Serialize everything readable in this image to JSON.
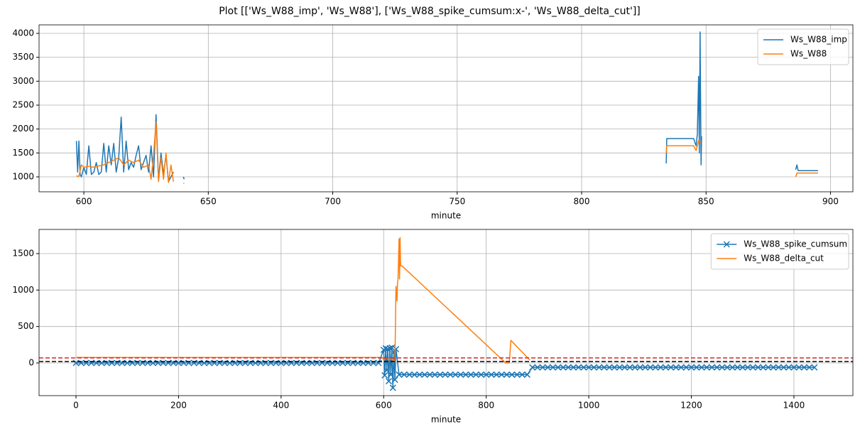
{
  "title": "Plot [['Ws_W88_imp', 'Ws_W88'], ['Ws_W88_spike_cumsum:x-', 'Ws_W88_delta_cut']]",
  "chart_data": [
    {
      "type": "line",
      "xlabel": "minute",
      "grid": true,
      "legend": "upper right",
      "xlim": [
        582,
        909
      ],
      "ylim": [
        688,
        4178
      ],
      "xticks": [
        600,
        650,
        700,
        750,
        800,
        850,
        900
      ],
      "yticks": [
        1000,
        1500,
        2000,
        2500,
        3000,
        3500,
        4000
      ],
      "series": [
        {
          "name": "Ws_W88_imp",
          "color": "#1f77b4",
          "x": [
            597,
            597.5,
            598,
            598.5,
            599,
            600,
            601,
            602,
            603,
            604,
            605,
            606,
            607,
            608,
            609,
            610,
            611,
            612,
            613,
            614,
            615,
            616,
            617,
            618,
            619,
            620,
            621,
            622,
            623,
            624,
            625,
            626,
            627,
            628,
            629,
            630,
            631,
            632,
            633,
            634,
            635,
            636,
            638,
            640,
            640.3,
            700,
            834,
            834.2,
            845,
            846,
            846.5,
            847,
            847.3,
            847.6,
            848,
            848.2,
            870,
            886,
            886.5,
            887,
            895
          ],
          "values": [
            1750,
            1100,
            1750,
            1050,
            1000,
            1200,
            1050,
            1650,
            1050,
            1100,
            1300,
            1050,
            1100,
            1700,
            1100,
            1650,
            1250,
            1700,
            1100,
            1400,
            2250,
            1100,
            1750,
            1150,
            1300,
            1200,
            1450,
            1650,
            1150,
            1300,
            1450,
            1100,
            1650,
            1000,
            2300,
            950,
            1500,
            1050,
            1450,
            900,
            1000,
            1100,
            null,
            1000,
            950,
            null,
            1280,
            1800,
            1800,
            1650,
            1900,
            3100,
            1500,
            4030,
            1250,
            1850,
            null,
            1150,
            1250,
            1130,
            1130
          ]
        },
        {
          "name": "Ws_W88",
          "color": "#ff7f0e",
          "x": [
            597,
            598,
            599,
            600,
            602,
            604,
            606,
            608,
            610,
            612,
            614,
            616,
            618,
            620,
            622,
            624,
            626,
            627,
            628,
            629,
            630,
            631,
            632,
            633,
            634,
            635,
            636,
            638,
            640,
            640.3,
            700,
            834,
            834.2,
            845,
            846,
            847,
            848,
            870,
            886,
            886.5,
            887,
            895
          ],
          "values": [
            1020,
            1010,
            1250,
            1200,
            1220,
            1200,
            1230,
            1250,
            1300,
            1350,
            1400,
            1250,
            1350,
            1300,
            1350,
            1200,
            1250,
            950,
            1450,
            2150,
            900,
            1400,
            950,
            1500,
            880,
            1250,
            900,
            null,
            870,
            860,
            null,
            1500,
            1650,
            1650,
            1550,
            1760,
            1720,
            null,
            1000,
            1080,
            1080,
            1080
          ]
        }
      ]
    },
    {
      "type": "line",
      "xlabel": "minute",
      "grid": true,
      "legend": "upper right",
      "xlim": [
        -72,
        1515
      ],
      "ylim": [
        -448,
        1831
      ],
      "xticks": [
        0,
        200,
        400,
        600,
        800,
        1000,
        1200,
        1400
      ],
      "yticks": [
        0,
        500,
        1000,
        1500
      ],
      "hlines": [
        {
          "value": 70,
          "color": "#d62728"
        },
        {
          "value": 20,
          "color": "#000000"
        }
      ],
      "series": [
        {
          "name": "Ws_W88_spike_cumsum",
          "color": "#1f77b4",
          "marker": "x",
          "x": [
            0,
            10,
            20,
            30,
            40,
            50,
            60,
            70,
            80,
            90,
            100,
            110,
            120,
            130,
            140,
            150,
            160,
            170,
            180,
            190,
            200,
            210,
            220,
            230,
            240,
            250,
            260,
            270,
            280,
            290,
            300,
            310,
            320,
            330,
            340,
            350,
            360,
            370,
            380,
            390,
            400,
            410,
            420,
            430,
            440,
            450,
            460,
            470,
            480,
            490,
            500,
            510,
            520,
            530,
            540,
            550,
            560,
            570,
            580,
            590,
            600,
            602,
            604,
            606,
            608,
            610,
            612,
            614,
            616,
            618,
            620,
            622,
            624,
            630,
            640,
            650,
            660,
            670,
            680,
            690,
            700,
            710,
            720,
            730,
            740,
            750,
            760,
            770,
            780,
            790,
            800,
            810,
            820,
            830,
            840,
            850,
            860,
            870,
            880,
            890,
            900,
            910,
            920,
            930,
            940,
            950,
            960,
            970,
            980,
            990,
            1000,
            1010,
            1020,
            1030,
            1040,
            1050,
            1060,
            1070,
            1080,
            1090,
            1100,
            1110,
            1120,
            1130,
            1140,
            1150,
            1160,
            1170,
            1180,
            1190,
            1200,
            1210,
            1220,
            1230,
            1240,
            1250,
            1260,
            1270,
            1280,
            1290,
            1300,
            1310,
            1320,
            1330,
            1340,
            1350,
            1360,
            1370,
            1380,
            1390,
            1400,
            1410,
            1420,
            1430,
            1440
          ],
          "values": [
            0,
            0,
            0,
            0,
            0,
            0,
            0,
            0,
            0,
            0,
            0,
            0,
            0,
            0,
            0,
            0,
            0,
            0,
            0,
            0,
            0,
            0,
            0,
            0,
            0,
            0,
            0,
            0,
            0,
            0,
            0,
            0,
            0,
            0,
            0,
            0,
            0,
            0,
            0,
            0,
            0,
            0,
            0,
            0,
            0,
            0,
            0,
            0,
            0,
            0,
            0,
            0,
            0,
            0,
            0,
            0,
            0,
            0,
            0,
            0,
            180,
            -170,
            200,
            -100,
            190,
            -250,
            200,
            -160,
            210,
            -340,
            150,
            -230,
            190,
            -160,
            -160,
            -160,
            -160,
            -160,
            -160,
            -160,
            -160,
            -160,
            -160,
            -160,
            -160,
            -160,
            -160,
            -160,
            -160,
            -160,
            -160,
            -160,
            -160,
            -160,
            -160,
            -160,
            -160,
            -160,
            -160,
            -60,
            -60,
            -60,
            -60,
            -60,
            -60,
            -60,
            -60,
            -60,
            -60,
            -60,
            -60,
            -60,
            -60,
            -60,
            -60,
            -60,
            -60,
            -60,
            -60,
            -60,
            -60,
            -60,
            -60,
            -60,
            -60,
            -60,
            -60,
            -60,
            -60,
            -60,
            -60,
            -60,
            -60,
            -60,
            -60,
            -60,
            -60,
            -60,
            -60,
            -60,
            -60,
            -60,
            -60,
            -60,
            -60,
            -60,
            -60,
            -60,
            -60,
            -60,
            -60,
            -60,
            -60,
            -60,
            -60
          ]
        },
        {
          "name": "Ws_W88_delta_cut",
          "color": "#ff7f0e",
          "x": [
            0,
            598,
            600,
            605,
            610,
            615,
            620,
            622,
            624,
            626,
            627,
            628,
            630,
            631,
            632,
            633,
            636,
            838,
            845,
            848,
            885
          ],
          "values": [
            75,
            75,
            40,
            70,
            40,
            60,
            20,
            40,
            1050,
            850,
            1100,
            1150,
            1700,
            1150,
            1720,
            1330,
            1330,
            0,
            0,
            310,
            40
          ]
        }
      ]
    }
  ]
}
